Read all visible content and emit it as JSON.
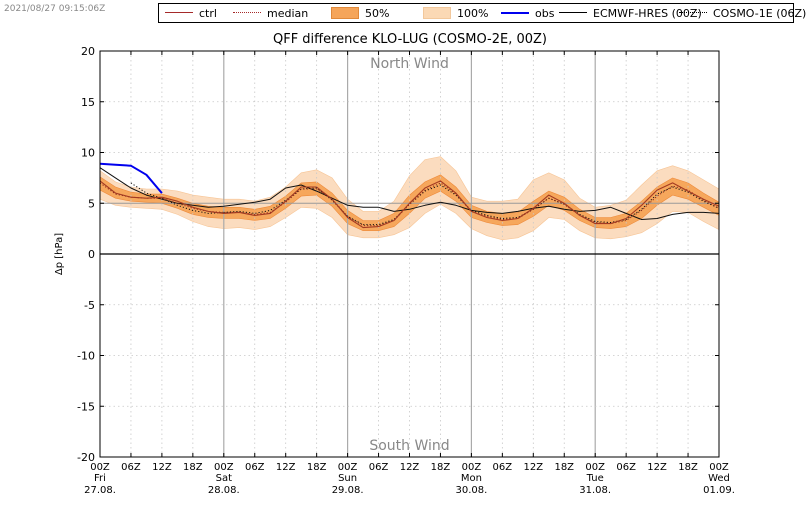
{
  "timestamp": "2021/08/27 09:15:06Z",
  "title": "QFF difference KLO-LUG (COSMO-2E, 00Z)",
  "legend": [
    {
      "label": "ctrl",
      "style": "solid",
      "color": "#a52a2a"
    },
    {
      "label": "median",
      "style": "dotted",
      "color": "#a52a2a"
    },
    {
      "label": "50%",
      "style": "patch",
      "color": "#f5a55a"
    },
    {
      "label": "100%",
      "style": "patch",
      "color": "#fbd9b5"
    },
    {
      "label": "obs",
      "style": "solid-thick",
      "color": "#0000ee"
    },
    {
      "label": "ECMWF-HRES (00Z)",
      "style": "solid",
      "color": "#000000"
    },
    {
      "label": "COSMO-1E (06Z)",
      "style": "dotted",
      "color": "#000000"
    }
  ],
  "chart_data": {
    "type": "line",
    "title": "QFF difference KLO-LUG (COSMO-2E, 00Z)",
    "ylabel": "Δp [hPa]",
    "ylim": [
      -20,
      20
    ],
    "yticks": [
      20,
      15,
      10,
      5,
      0,
      -5,
      -10,
      -15,
      -20
    ],
    "xlim": [
      0,
      120
    ],
    "xticks": [
      {
        "h": 0,
        "label": "00Z",
        "day": "Fri",
        "date": "27.08."
      },
      {
        "h": 6,
        "label": "06Z"
      },
      {
        "h": 12,
        "label": "12Z"
      },
      {
        "h": 18,
        "label": "18Z"
      },
      {
        "h": 24,
        "label": "00Z",
        "day": "Sat",
        "date": "28.08."
      },
      {
        "h": 30,
        "label": "06Z"
      },
      {
        "h": 36,
        "label": "12Z"
      },
      {
        "h": 42,
        "label": "18Z"
      },
      {
        "h": 48,
        "label": "00Z",
        "day": "Sun",
        "date": "29.08."
      },
      {
        "h": 54,
        "label": "06Z"
      },
      {
        "h": 60,
        "label": "12Z"
      },
      {
        "h": 66,
        "label": "18Z"
      },
      {
        "h": 72,
        "label": "00Z",
        "day": "Mon",
        "date": "30.08."
      },
      {
        "h": 78,
        "label": "06Z"
      },
      {
        "h": 84,
        "label": "12Z"
      },
      {
        "h": 90,
        "label": "18Z"
      },
      {
        "h": 96,
        "label": "00Z",
        "day": "Tue",
        "date": "31.08."
      },
      {
        "h": 102,
        "label": "06Z"
      },
      {
        "h": 108,
        "label": "12Z"
      },
      {
        "h": 114,
        "label": "18Z"
      },
      {
        "h": 120,
        "label": "00Z",
        "day": "Wed",
        "date": "01.09."
      }
    ],
    "annotations": [
      {
        "text": "North Wind",
        "y": 18.8
      },
      {
        "text": "South Wind",
        "y": -18.8
      }
    ],
    "grid": true,
    "hours": [
      0,
      3,
      6,
      9,
      12,
      15,
      18,
      21,
      24,
      27,
      30,
      33,
      36,
      39,
      42,
      45,
      48,
      51,
      54,
      57,
      60,
      63,
      66,
      69,
      72,
      75,
      78,
      81,
      84,
      87,
      90,
      93,
      96,
      99,
      102,
      105,
      108,
      111,
      114,
      117,
      120
    ],
    "series": [
      {
        "name": "ctrl",
        "values": [
          7.2,
          6.0,
          5.6,
          5.5,
          5.6,
          5.2,
          4.6,
          4.2,
          4.0,
          4.1,
          3.8,
          4.0,
          5.2,
          6.6,
          6.6,
          5.4,
          3.6,
          2.6,
          2.7,
          3.3,
          5.0,
          6.5,
          7.2,
          6.0,
          4.2,
          3.6,
          3.3,
          3.5,
          4.5,
          5.8,
          5.0,
          3.8,
          3.0,
          3.0,
          3.5,
          4.8,
          6.3,
          7.0,
          6.2,
          5.4,
          4.7
        ]
      },
      {
        "name": "median",
        "values": [
          7.0,
          5.9,
          5.6,
          5.5,
          5.5,
          5.0,
          4.5,
          4.2,
          4.1,
          4.1,
          3.9,
          4.1,
          5.1,
          6.4,
          6.4,
          5.4,
          3.7,
          2.8,
          2.8,
          3.3,
          4.9,
          6.3,
          7.0,
          5.9,
          4.2,
          3.7,
          3.4,
          3.5,
          4.4,
          5.5,
          4.9,
          3.8,
          3.1,
          3.0,
          3.3,
          4.3,
          5.7,
          6.7,
          6.3,
          5.3,
          4.5
        ]
      },
      {
        "name": "obs",
        "values": [
          8.9,
          8.8,
          8.7,
          7.8,
          6.0
        ]
      },
      {
        "name": "ECMWF-HRES (00Z)",
        "values": [
          8.5,
          7.5,
          6.5,
          5.8,
          5.4,
          5.0,
          4.8,
          4.6,
          4.7,
          4.9,
          5.1,
          5.4,
          6.5,
          6.8,
          6.2,
          5.5,
          4.8,
          4.6,
          4.6,
          4.2,
          4.4,
          4.8,
          5.1,
          4.8,
          4.3,
          4.1,
          4.0,
          4.2,
          4.5,
          4.7,
          4.4,
          4.2,
          4.3,
          4.6,
          4.0,
          3.4,
          3.5,
          3.9,
          4.1,
          4.1,
          4.0
        ]
      },
      {
        "name": "COSMO-1E (06Z)",
        "values": [
          null,
          null,
          7.0,
          6.0,
          5.5,
          4.8,
          4.3,
          4.0,
          4.1,
          4.2,
          4.0,
          4.3,
          5.3,
          6.4,
          6.5,
          5.3,
          3.7,
          2.9,
          2.9,
          3.4,
          4.9,
          6.2,
          6.8,
          5.8,
          4.3,
          3.8,
          3.5,
          3.6,
          4.4,
          5.5,
          4.9,
          3.9,
          3.2,
          3.1,
          3.4,
          4.4,
          5.9,
          6.6,
          6.1,
          5.2,
          4.5
        ]
      }
    ],
    "bands": [
      {
        "name": "50%",
        "lower": [
          6.3,
          5.5,
          5.2,
          5.1,
          5.0,
          4.5,
          3.9,
          3.6,
          3.5,
          3.5,
          3.3,
          3.5,
          4.5,
          5.7,
          5.8,
          4.7,
          3.0,
          2.3,
          2.3,
          2.7,
          4.0,
          5.5,
          6.2,
          5.2,
          3.6,
          3.1,
          2.8,
          2.9,
          3.7,
          4.8,
          4.3,
          3.3,
          2.6,
          2.5,
          2.7,
          3.5,
          4.8,
          5.8,
          5.4,
          4.6,
          3.8
        ],
        "upper": [
          7.6,
          6.6,
          6.1,
          5.9,
          5.9,
          5.5,
          5.0,
          4.7,
          4.6,
          4.6,
          4.4,
          4.7,
          5.7,
          7.0,
          7.1,
          6.0,
          4.3,
          3.3,
          3.3,
          4.0,
          5.8,
          7.1,
          7.8,
          6.6,
          4.8,
          4.2,
          4.0,
          4.1,
          5.2,
          6.2,
          5.6,
          4.4,
          3.6,
          3.6,
          4.0,
          5.2,
          6.6,
          7.5,
          7.0,
          6.0,
          5.1
        ]
      },
      {
        "name": "100%",
        "lower": [
          5.4,
          4.8,
          4.6,
          4.5,
          4.4,
          3.9,
          3.2,
          2.7,
          2.5,
          2.6,
          2.4,
          2.7,
          3.6,
          4.6,
          4.5,
          3.6,
          1.9,
          1.6,
          1.6,
          1.9,
          2.6,
          4.0,
          4.9,
          4.0,
          2.5,
          1.8,
          1.4,
          1.6,
          2.3,
          3.6,
          3.4,
          2.3,
          1.6,
          1.5,
          1.7,
          2.1,
          3.0,
          4.2,
          4.1,
          3.2,
          2.4
        ],
        "upper": [
          8.2,
          7.1,
          6.6,
          6.4,
          6.4,
          6.2,
          5.8,
          5.6,
          5.4,
          5.4,
          5.2,
          5.6,
          6.6,
          8.0,
          8.3,
          7.5,
          5.4,
          4.2,
          4.2,
          5.2,
          7.7,
          9.3,
          9.6,
          8.2,
          5.6,
          5.2,
          5.2,
          5.4,
          7.3,
          8.0,
          7.3,
          5.5,
          4.6,
          4.8,
          5.3,
          6.8,
          8.2,
          8.7,
          8.2,
          7.3,
          6.4
        ]
      }
    ]
  }
}
